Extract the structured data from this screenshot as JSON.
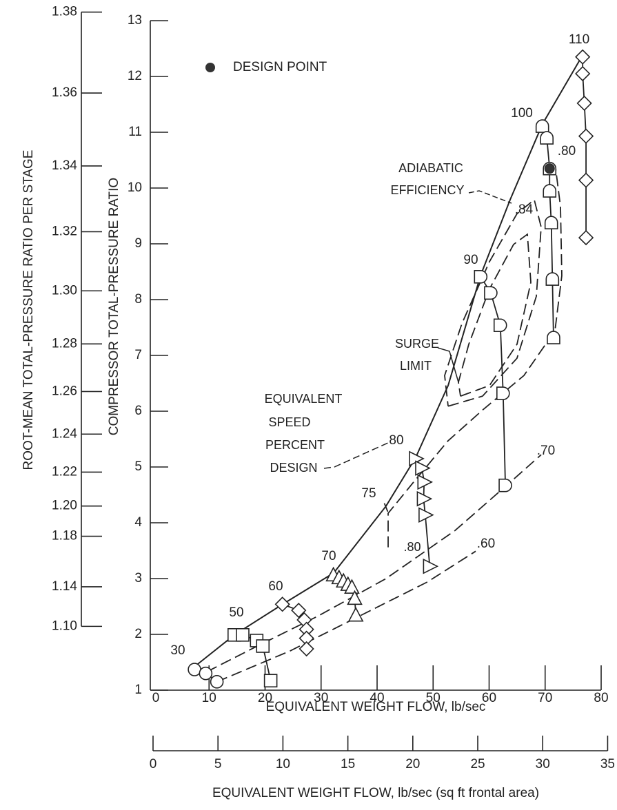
{
  "chart_data": {
    "type": "compressor-map",
    "ylabel": "COMPRESSOR TOTAL-PRESSURE RATIO",
    "y2label": "ROOT-MEAN TOTAL-PRESSURE RATIO PER STAGE",
    "xlabel": "EQUIVALENT WEIGHT FLOW, lb/sec",
    "x2label": "EQUIVALENT WEIGHT FLOW, lb/sec (sq ft frontal area)",
    "xlim": [
      0,
      80
    ],
    "xticks": [
      0,
      10,
      20,
      30,
      40,
      50,
      60,
      70,
      80
    ],
    "ylim": [
      1,
      13
    ],
    "yticks": [
      1,
      2,
      3,
      4,
      5,
      6,
      7,
      8,
      9,
      10,
      11,
      12,
      13
    ],
    "x2lim": [
      0,
      34.5
    ],
    "x2ticks": [
      0,
      5,
      10,
      15,
      20,
      25,
      30,
      35
    ],
    "y2scale": {
      "type": "power",
      "exponent": 8
    },
    "y2ticks": [
      1.38,
      1.36,
      1.34,
      1.32,
      {
        "value": 1.3,
        "label": "1.30"
      },
      1.28,
      1.26,
      1.24,
      1.22,
      {
        "value": 1.2,
        "label": "1.20"
      },
      1.18,
      1.14,
      {
        "value": 1.1,
        "label": "1.10"
      }
    ],
    "color": "#222222",
    "speed_lines": [
      {
        "name": "30",
        "marker": "circle",
        "x": [
          7.4,
          9.4,
          11.4
        ],
        "y": [
          1.37,
          1.3,
          1.15
        ]
      },
      {
        "name": "50",
        "marker": "square",
        "x": [
          14.5,
          16.0,
          18.5,
          19.6,
          21.0
        ],
        "y": [
          1.99,
          1.99,
          1.89,
          1.79,
          1.17
        ]
      },
      {
        "name": "60",
        "marker": "diamond",
        "x": [
          23.1,
          26.0,
          27.0,
          27.4,
          27.4,
          27.4
        ],
        "y": [
          2.54,
          2.43,
          2.26,
          2.09,
          1.93,
          1.74
        ]
      },
      {
        "name": "70",
        "marker": "triangle-up",
        "x": [
          32.2,
          33.2,
          34.0,
          34.8,
          35.5,
          36.0,
          36.2
        ],
        "y": [
          3.07,
          3.02,
          2.96,
          2.9,
          2.85,
          2.65,
          2.35
        ]
      },
      {
        "name": "75",
        "marker": "none",
        "x": [
          41.3,
          41.9
        ],
        "y": [
          4.35,
          4.2
        ]
      },
      {
        "name": "80",
        "marker": "triangle-right",
        "x": [
          46.9,
          48.0,
          48.4,
          48.3,
          48.6,
          49.4
        ],
        "y": [
          5.15,
          4.98,
          4.73,
          4.43,
          4.14,
          3.22
        ]
      },
      {
        "name": "90",
        "marker": "d-shape",
        "x": [
          58.5,
          60.3,
          62.0,
          62.5,
          62.9
        ],
        "y": [
          8.41,
          8.12,
          7.54,
          6.32,
          4.67
        ]
      },
      {
        "name": "100",
        "marker": "half-circle",
        "x": [
          69.5,
          70.3,
          70.8,
          70.8,
          71.1,
          71.3,
          71.5
        ],
        "y": [
          11.11,
          10.9,
          10.35,
          9.95,
          9.38,
          8.37,
          7.32
        ]
      },
      {
        "name": "110",
        "marker": "diamond",
        "x": [
          76.7,
          76.7,
          77.0,
          77.3,
          77.3,
          77.3
        ],
        "y": [
          12.35,
          12.05,
          11.52,
          10.93,
          10.14,
          9.11
        ]
      }
    ],
    "surge_limit": {
      "x": [
        7.38,
        14.52,
        23.14,
        32.25,
        41.6,
        46.89,
        52.68,
        58.46,
        63.75,
        69.54,
        76.68
      ],
      "y": [
        1.42,
        1.99,
        2.54,
        3.1,
        4.3,
        5.17,
        6.46,
        8.43,
        9.79,
        11.15,
        12.38
      ]
    },
    "contours": [
      {
        "name": ".60",
        "x": [
          11.4,
          24.4,
          36.7,
          49.0,
          57.6
        ],
        "y": [
          1.15,
          1.7,
          2.32,
          2.94,
          3.49
        ]
      },
      {
        "name": ".70",
        "x": [
          9.6,
          19.4,
          29.3,
          41.6,
          53.9,
          63.8,
          69.3
        ],
        "y": [
          1.33,
          1.83,
          2.32,
          3.0,
          3.86,
          4.73,
          5.22
        ]
      },
      {
        "name": ".80",
        "x": [
          41.97,
          41.97,
          46.52,
          52.68,
          58.83,
          66.22,
          71.75,
          72.98,
          72.74,
          71.88
        ],
        "y": [
          3.56,
          4.17,
          4.73,
          5.47,
          6.02,
          6.64,
          7.44,
          8.43,
          9.67,
          10.35
        ]
      },
      {
        "name": ".84",
        "x": [
          52.68,
          58.83,
          64.98,
          68.43,
          69.29,
          68.06,
          64.98,
          60.06,
          55.14,
          52.06,
          52.68
        ],
        "y": [
          6.09,
          6.27,
          6.95,
          8.06,
          9.3,
          9.79,
          9.54,
          8.68,
          7.57,
          6.64,
          6.09
        ]
      },
      {
        "x": [
          54.89,
          60.06,
          64.98,
          67.45,
          66.83,
          64.37,
          60.06,
          56.37,
          54.52,
          54.89
        ],
        "y": [
          6.27,
          6.46,
          7.2,
          8.31,
          9.17,
          8.99,
          8.19,
          7.2,
          6.52,
          6.27
        ]
      }
    ],
    "design_point": {
      "label": "DESIGN POINT",
      "x": 70.8,
      "y": 10.35
    },
    "annotations": [
      {
        "lines": [
          "ADIABATIC",
          "EFFICIENCY"
        ]
      },
      {
        "lines": [
          "SURGE",
          "LIMIT"
        ]
      },
      {
        "lines": [
          "EQUIVALENT",
          "SPEED",
          "PERCENT",
          "DESIGN"
        ]
      }
    ]
  }
}
